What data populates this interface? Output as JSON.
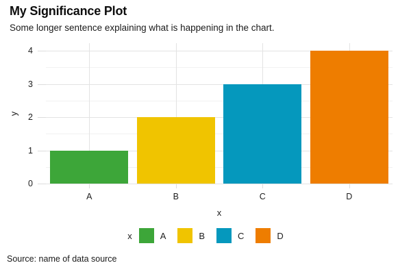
{
  "chart_data": {
    "type": "bar",
    "title": "My Significance Plot",
    "subtitle": "Some longer sentence explaining what is happening in the chart.",
    "source": "Source: name of data source",
    "categories": [
      "A",
      "B",
      "C",
      "D"
    ],
    "values": [
      1,
      2,
      3,
      4
    ],
    "bar_colors": [
      "#3da639",
      "#f0c400",
      "#0598bd",
      "#ee7d00"
    ],
    "xlabel": "x",
    "ylabel": "y",
    "ylim": [
      0,
      4
    ],
    "yticks": [
      0,
      1,
      2,
      3,
      4
    ],
    "grid": {
      "major": true,
      "minor": true,
      "major_color": "#e3e3e3",
      "minor_color": "#f1f1f1",
      "vertical_at_category_centers": true
    },
    "legend": {
      "title": "x",
      "position": "bottom",
      "entries": [
        {
          "label": "A",
          "color": "#3da639"
        },
        {
          "label": "B",
          "color": "#f0c400"
        },
        {
          "label": "C",
          "color": "#0598bd"
        },
        {
          "label": "D",
          "color": "#ee7d00"
        }
      ]
    }
  }
}
